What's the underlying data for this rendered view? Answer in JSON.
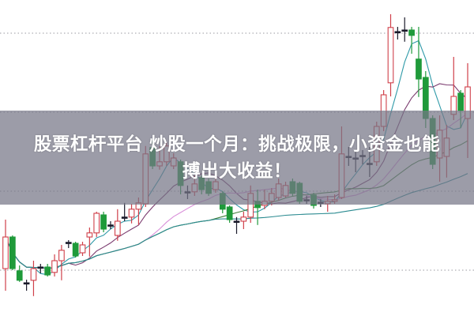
{
  "headline": {
    "line1": "股票杠杆平台 炒股一个月：挑战极限，小资金也能",
    "line2": "搏出大收益！"
  },
  "chart_data": {
    "type": "candlestick",
    "title": "",
    "xlabel": "",
    "ylabel": "",
    "ylim": [
      10,
      110
    ],
    "grid": {
      "horizontal": true,
      "style": "dotted",
      "values": [
        25,
        50,
        75,
        100
      ]
    },
    "colors": {
      "up": "#d0404a",
      "down": "#1f9a3a",
      "doji": "#1a1a2a",
      "grid": "#9a9aa0",
      "ma5": "#2f9aa8",
      "ma10": "#7a3a6e",
      "ma20": "#d98fd9",
      "ma30": "#3f7f3a",
      "ma60": "#2a8a90"
    },
    "moving_averages": [
      5,
      10,
      20,
      30,
      60
    ],
    "candles": [
      [
        25.5,
        41,
        18.5,
        35.5
      ],
      [
        35.5,
        36,
        25,
        25.5
      ],
      [
        24.8,
        26.5,
        21.3,
        21.8
      ],
      [
        21,
        22,
        18.5,
        21
      ],
      [
        21.8,
        28,
        16.8,
        25.5
      ],
      [
        26,
        27,
        24,
        26
      ],
      [
        26,
        27,
        23,
        23.5
      ],
      [
        24.3,
        30,
        23,
        28
      ],
      [
        28,
        33,
        21.8,
        31.3
      ],
      [
        33.8,
        34.5,
        32,
        33.8
      ],
      [
        33.5,
        34,
        29,
        29.5
      ],
      [
        30.5,
        34,
        29.5,
        33
      ],
      [
        35.5,
        38.5,
        29.3,
        36.8
      ],
      [
        36.8,
        43.5,
        35.5,
        43
      ],
      [
        42.5,
        43.5,
        37,
        38
      ],
      [
        39.3,
        40.5,
        38,
        39.3
      ],
      [
        36,
        44.3,
        34.3,
        40.5
      ],
      [
        41.8,
        46.3,
        40.5,
        41.8
      ],
      [
        41.8,
        46,
        39.8,
        44.3
      ],
      [
        44.3,
        48,
        39.3,
        46.3
      ],
      [
        46,
        64.3,
        45,
        61.8
      ],
      [
        63.8,
        66,
        57,
        58
      ],
      [
        58,
        64.3,
        56.8,
        59.3
      ],
      [
        59.3,
        65.5,
        58,
        64.3
      ],
      [
        58,
        62,
        57,
        60.5
      ],
      [
        59.3,
        60,
        49,
        51.8
      ],
      [
        49.8,
        51.8,
        47.5,
        49.8
      ],
      [
        49.8,
        55,
        48.5,
        52.3
      ],
      [
        54.3,
        55,
        49,
        50.5
      ],
      [
        53,
        54,
        48.5,
        49.3
      ],
      [
        50.5,
        54,
        49.5,
        53
      ],
      [
        49.3,
        50,
        43,
        44.3
      ],
      [
        45,
        45.5,
        40,
        41
      ],
      [
        40.5,
        41.8,
        36.5,
        40.5
      ],
      [
        40.5,
        43.5,
        38,
        41.8
      ],
      [
        41.8,
        51.8,
        40,
        49.3
      ],
      [
        46.8,
        50.5,
        39.3,
        44.8
      ],
      [
        45.5,
        50.5,
        44.3,
        46.8
      ],
      [
        46.8,
        51,
        45.5,
        49.3
      ],
      [
        48,
        54,
        47,
        52.3
      ],
      [
        48.5,
        53,
        48,
        51.8
      ],
      [
        53,
        54,
        48.5,
        49.3
      ],
      [
        52.5,
        53,
        46,
        46.8
      ],
      [
        47.3,
        48.5,
        46,
        47.3
      ],
      [
        48.8,
        49.5,
        44.5,
        45.5
      ],
      [
        46.5,
        47.5,
        45,
        46.5
      ],
      [
        46,
        48.5,
        43.5,
        46.8
      ],
      [
        46.8,
        49,
        46,
        47.3
      ],
      [
        48,
        70.5,
        47.5,
        61.8
      ],
      [
        61,
        64,
        58,
        61
      ],
      [
        60.5,
        63,
        56,
        60.5
      ],
      [
        61.3,
        63,
        58.5,
        61.3
      ],
      [
        58.8,
        64,
        54.5,
        58.8
      ],
      [
        59.3,
        72,
        58,
        70.5
      ],
      [
        70.5,
        82,
        69,
        80.5
      ],
      [
        84.3,
        106,
        80,
        101.8
      ],
      [
        100.5,
        102,
        98,
        100.5
      ],
      [
        101,
        105,
        97.3,
        101
      ],
      [
        101,
        102,
        93.5,
        99.3
      ],
      [
        91.8,
        102,
        79.8,
        85.5
      ],
      [
        86,
        88,
        70,
        73
      ],
      [
        73,
        74,
        57,
        58.5
      ],
      [
        60.5,
        74,
        53,
        69.3
      ],
      [
        61,
        71,
        54.3,
        66.8
      ],
      [
        74.3,
        92.5,
        72.5,
        80
      ],
      [
        81,
        82,
        70,
        75.5
      ],
      [
        73,
        90.5,
        60.5,
        83
      ]
    ]
  }
}
